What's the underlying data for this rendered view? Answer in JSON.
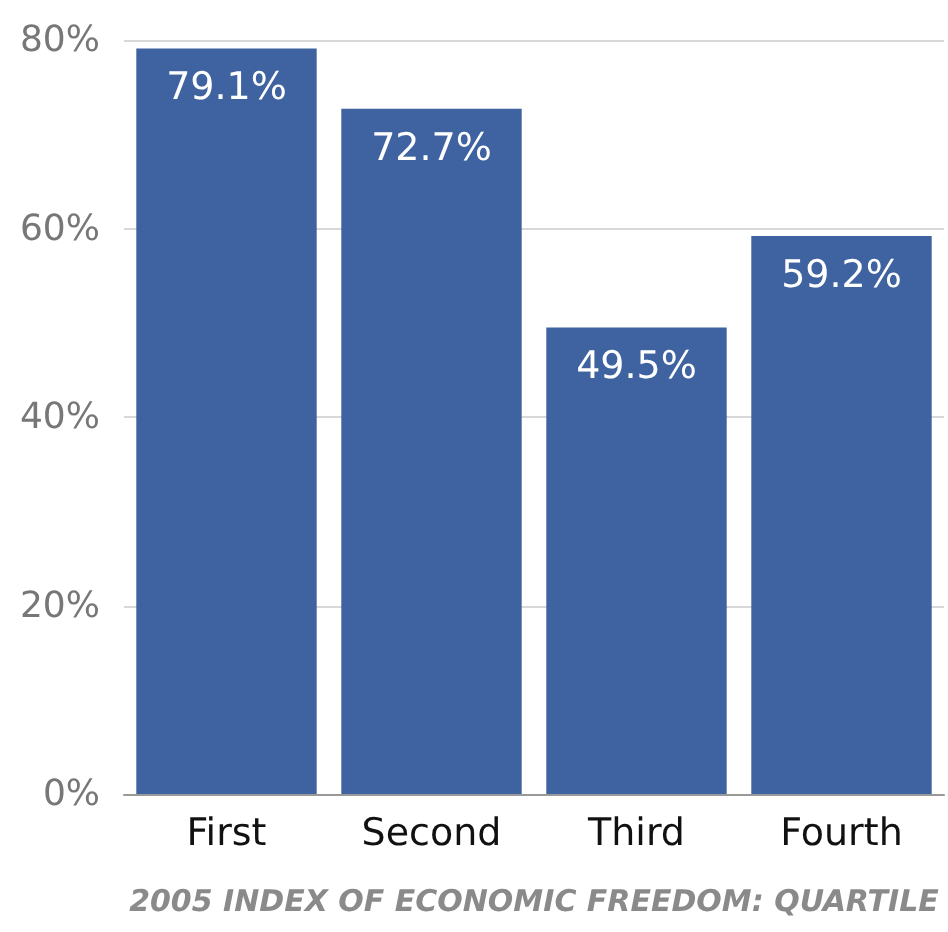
{
  "chart_data": {
    "type": "bar",
    "xlabel": "2005 INDEX OF ECONOMIC FREEDOM: QUARTILE",
    "categories": [
      "First",
      "Second",
      "Third",
      "Fourth"
    ],
    "values": [
      79.1,
      72.7,
      49.5,
      59.2
    ],
    "value_labels": [
      "79.1%",
      "72.7%",
      "49.5%",
      "59.2%"
    ],
    "color": "#3e63a0",
    "ylim": [
      0,
      80
    ],
    "yticks": [
      {
        "value": 0,
        "label": "0%"
      },
      {
        "value": 20,
        "label": "20%"
      },
      {
        "value": 40,
        "label": "40%"
      },
      {
        "value": 60,
        "label": "60%"
      },
      {
        "value": 80,
        "label": "80%"
      }
    ],
    "grid": "y"
  }
}
